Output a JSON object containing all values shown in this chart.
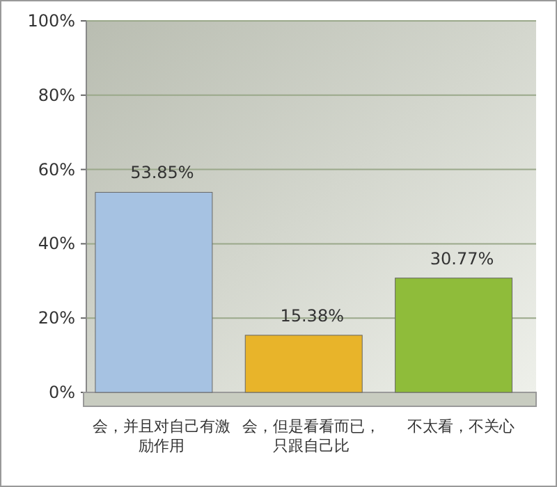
{
  "chart_data": {
    "type": "bar",
    "categories": [
      "会，并且对自己有激励作用",
      "会，但是看看而已，只跟自己比",
      "不太看，不关心"
    ],
    "values": [
      53.85,
      15.38,
      30.77
    ],
    "colors": [
      "#a6c2e2",
      "#e8b42a",
      "#8fbc3a"
    ],
    "value_labels": [
      "53.85%",
      "15.38%",
      "30.77%"
    ],
    "ylim": [
      0,
      100
    ],
    "yticks": [
      {
        "value": 0,
        "label": "0%"
      },
      {
        "value": 20,
        "label": "20%"
      },
      {
        "value": 40,
        "label": "40%"
      },
      {
        "value": 60,
        "label": "60%"
      },
      {
        "value": 80,
        "label": "80%"
      },
      {
        "value": 100,
        "label": "100%"
      }
    ],
    "grid": "y"
  }
}
